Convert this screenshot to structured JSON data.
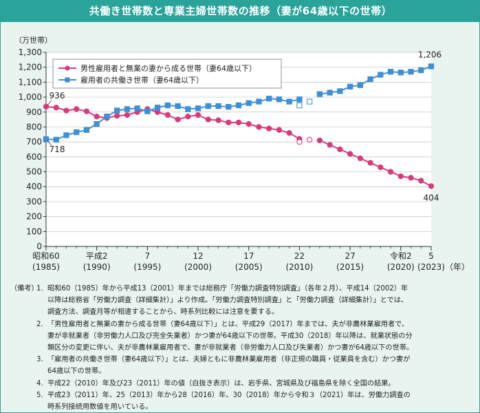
{
  "title": "共働き世帯数と専業主婦世帯数の推移（妻が64歳以下の世帯）",
  "colors": {
    "header": "#2aa39a",
    "pink": "#d63b7d",
    "blue": "#3e8fd6",
    "panel": "#e9f4f1"
  },
  "chart_data": {
    "type": "line",
    "ylabel": "（万世帯）",
    "xunit": "（年）",
    "ylim": [
      0,
      1300
    ],
    "yticks": [
      0,
      100,
      200,
      300,
      400,
      500,
      600,
      700,
      800,
      900,
      1000,
      1100,
      1200,
      1300
    ],
    "ytick_labels": [
      "0",
      "100",
      "200",
      "300",
      "400",
      "500",
      "600",
      "700",
      "800",
      "900",
      "1,000",
      "1,100",
      "1,200",
      "1,300"
    ],
    "x": [
      1985,
      1986,
      1987,
      1988,
      1989,
      1990,
      1991,
      1992,
      1993,
      1994,
      1995,
      1996,
      1997,
      1998,
      1999,
      2000,
      2001,
      2002,
      2003,
      2004,
      2005,
      2006,
      2007,
      2008,
      2009,
      2010,
      2011,
      2012,
      2013,
      2014,
      2015,
      2016,
      2017,
      2018,
      2019,
      2020,
      2021,
      2022,
      2023
    ],
    "xlim": [
      1985,
      2023
    ],
    "xticks": [
      {
        "year": 1985,
        "era": "昭和60",
        "ad": "(1985)"
      },
      {
        "year": 1990,
        "era": "平成2",
        "ad": "(1990)"
      },
      {
        "year": 1995,
        "era": "7",
        "ad": "(1995)"
      },
      {
        "year": 2000,
        "era": "12",
        "ad": "(2000)"
      },
      {
        "year": 2005,
        "era": "17",
        "ad": "(2005)"
      },
      {
        "year": 2010,
        "era": "22",
        "ad": "(2010)"
      },
      {
        "year": 2015,
        "era": "27",
        "ad": "(2015)"
      },
      {
        "year": 2020,
        "era": "令和2",
        "ad": "(2020)"
      },
      {
        "year": 2023,
        "era": "5",
        "ad": "(2023)"
      }
    ],
    "break_years": [
      2010,
      2011
    ],
    "hollow_years": [
      2010,
      2011
    ],
    "series": [
      {
        "name": "男性雇用者と無業の妻から成る世帯（妻64歳以下）",
        "color": "#d63b7d",
        "marker": "circle",
        "values": [
          936,
          930,
          910,
          920,
          905,
          870,
          860,
          875,
          880,
          900,
          920,
          900,
          880,
          850,
          870,
          880,
          850,
          845,
          830,
          830,
          820,
          800,
          790,
          780,
          760,
          720,
          715,
          710,
          680,
          650,
          620,
          590,
          560,
          530,
          500,
          470,
          460,
          440,
          404
        ]
      },
      {
        "name": "雇用者の共働き世帯（妻64歳以下）",
        "color": "#3e8fd6",
        "marker": "square",
        "values": [
          718,
          715,
          745,
          765,
          780,
          820,
          870,
          910,
          920,
          925,
          905,
          930,
          945,
          940,
          920,
          925,
          940,
          940,
          935,
          945,
          960,
          970,
          990,
          985,
          970,
          985,
          970,
          1020,
          1030,
          1040,
          1070,
          1080,
          1120,
          1150,
          1170,
          1165,
          1170,
          1180,
          1206
        ]
      }
    ],
    "data_labels": [
      {
        "series": 0,
        "year": 1985,
        "text": "936"
      },
      {
        "series": 1,
        "year": 1985,
        "text": "718"
      },
      {
        "series": 1,
        "year": 2023,
        "text": "1,206"
      },
      {
        "series": 0,
        "year": 2023,
        "text": "404"
      }
    ]
  },
  "notes": {
    "label": "（備考）",
    "items": [
      {
        "num": "1.",
        "lines": [
          "昭和60（1985）年から平成13（2001）年までは総務庁「労働力調査特別調査」（各年２月）、平成14（2002）年",
          "以降は総務省「労働力調査（詳細集計）」より作成。「労働力調査特別調査」と「労働力調査（詳細集計）」とでは、",
          "調査方法、調査月等が相違することから、時系列比較には注意を要する。"
        ]
      },
      {
        "num": "2.",
        "lines": [
          "「男性雇用者と無業の妻から成る世帯（妻64歳以下）」とは、平成29（2017）年までは、夫が非農林業雇用者で、",
          "妻が非就業者（非労働力人口及び完全失業者）かつ妻が64歳以下の世帯。平成30（2018）年以降は、就業状態の分",
          "類区分の変更に伴い、夫が非農林業雇用者で、妻が非就業者（非労働力人口及び失業者）かつ妻が64歳以下の世帯。"
        ]
      },
      {
        "num": "3.",
        "lines": [
          "「雇用者の共働き世帯（妻64歳以下）」とは、夫婦ともに非農林業雇用者（非正規の職員・従業員を含む）かつ妻が",
          "64歳以下の世帯。"
        ]
      },
      {
        "num": "4.",
        "lines": [
          "平成22（2010）年及び23（2011）年の値（白抜き表示）は、岩手県、宮城県及び福島県を除く全国の結果。"
        ]
      },
      {
        "num": "5.",
        "lines": [
          "平成23（2011）年、25（2013）年から28（2016）年、30（2018）年から令和３（2021）年は、労働力調査の",
          "時系列接続用数値を用いている。"
        ]
      }
    ]
  }
}
